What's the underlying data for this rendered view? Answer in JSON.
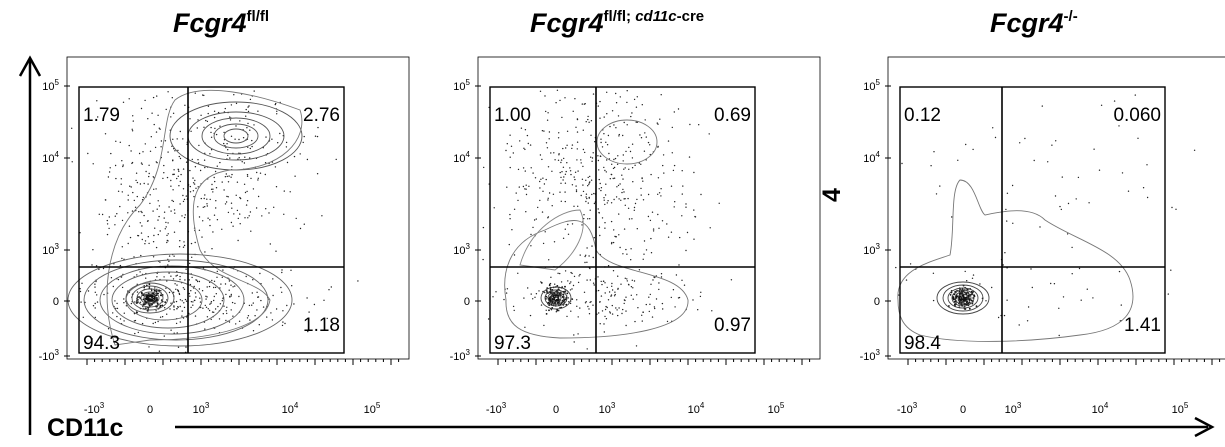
{
  "chart_data": [
    {
      "type": "scatter",
      "title_main": "Fcgr4",
      "title_sup": "fl/fl",
      "xlabel": "CD11c",
      "x_scale": "biexponential",
      "y_scale": "biexponential",
      "x_ticks": [
        {
          "base": "-10",
          "exp": "3"
        },
        {
          "base": "0",
          "exp": ""
        },
        {
          "base": "10",
          "exp": "3"
        },
        {
          "base": "10",
          "exp": "4"
        },
        {
          "base": "10",
          "exp": "5"
        }
      ],
      "y_ticks": [
        {
          "base": "10",
          "exp": "5"
        },
        {
          "base": "10",
          "exp": "4"
        },
        {
          "base": "10",
          "exp": "3"
        },
        {
          "base": "0",
          "exp": ""
        },
        {
          "base": "-10",
          "exp": "3"
        }
      ],
      "quadrants": {
        "upper_left": "1.79",
        "upper_right": "2.76",
        "lower_left": "94.3",
        "lower_right": "1.18"
      }
    },
    {
      "type": "scatter",
      "title_main": "Fcgr4",
      "title_sup_italic_a": "fl/fl; ",
      "title_sup_italic_b": "cd11c",
      "title_sup_normal": "-cre",
      "xlabel": "CD11c",
      "x_scale": "biexponential",
      "y_scale": "biexponential",
      "x_ticks": [
        {
          "base": "-10",
          "exp": "3"
        },
        {
          "base": "0",
          "exp": ""
        },
        {
          "base": "10",
          "exp": "3"
        },
        {
          "base": "10",
          "exp": "4"
        },
        {
          "base": "10",
          "exp": "5"
        }
      ],
      "y_ticks": [
        {
          "base": "10",
          "exp": "5"
        },
        {
          "base": "10",
          "exp": "4"
        },
        {
          "base": "10",
          "exp": "3"
        },
        {
          "base": "0",
          "exp": ""
        },
        {
          "base": "-10",
          "exp": "3"
        }
      ],
      "quadrants": {
        "upper_left": "1.00",
        "upper_right": "0.69",
        "lower_left": "97.3",
        "lower_right": "0.97"
      }
    },
    {
      "type": "scatter",
      "title_main": "Fcgr4",
      "title_sup": "-/-",
      "xlabel": "CD11c",
      "x_scale": "biexponential",
      "y_scale": "biexponential",
      "x_ticks": [
        {
          "base": "-10",
          "exp": "3"
        },
        {
          "base": "0",
          "exp": ""
        },
        {
          "base": "10",
          "exp": "3"
        },
        {
          "base": "10",
          "exp": "4"
        },
        {
          "base": "10",
          "exp": "5"
        }
      ],
      "y_ticks": [
        {
          "base": "10",
          "exp": "5"
        },
        {
          "base": "10",
          "exp": "4"
        },
        {
          "base": "10",
          "exp": "3"
        },
        {
          "base": "0",
          "exp": ""
        },
        {
          "base": "-10",
          "exp": "3"
        }
      ],
      "quadrants": {
        "upper_left": "0.12",
        "upper_right": "0.060",
        "lower_left": "98.4",
        "lower_right": "1.41"
      },
      "stray_label": "4"
    }
  ],
  "x_axis_label": "CD11c"
}
